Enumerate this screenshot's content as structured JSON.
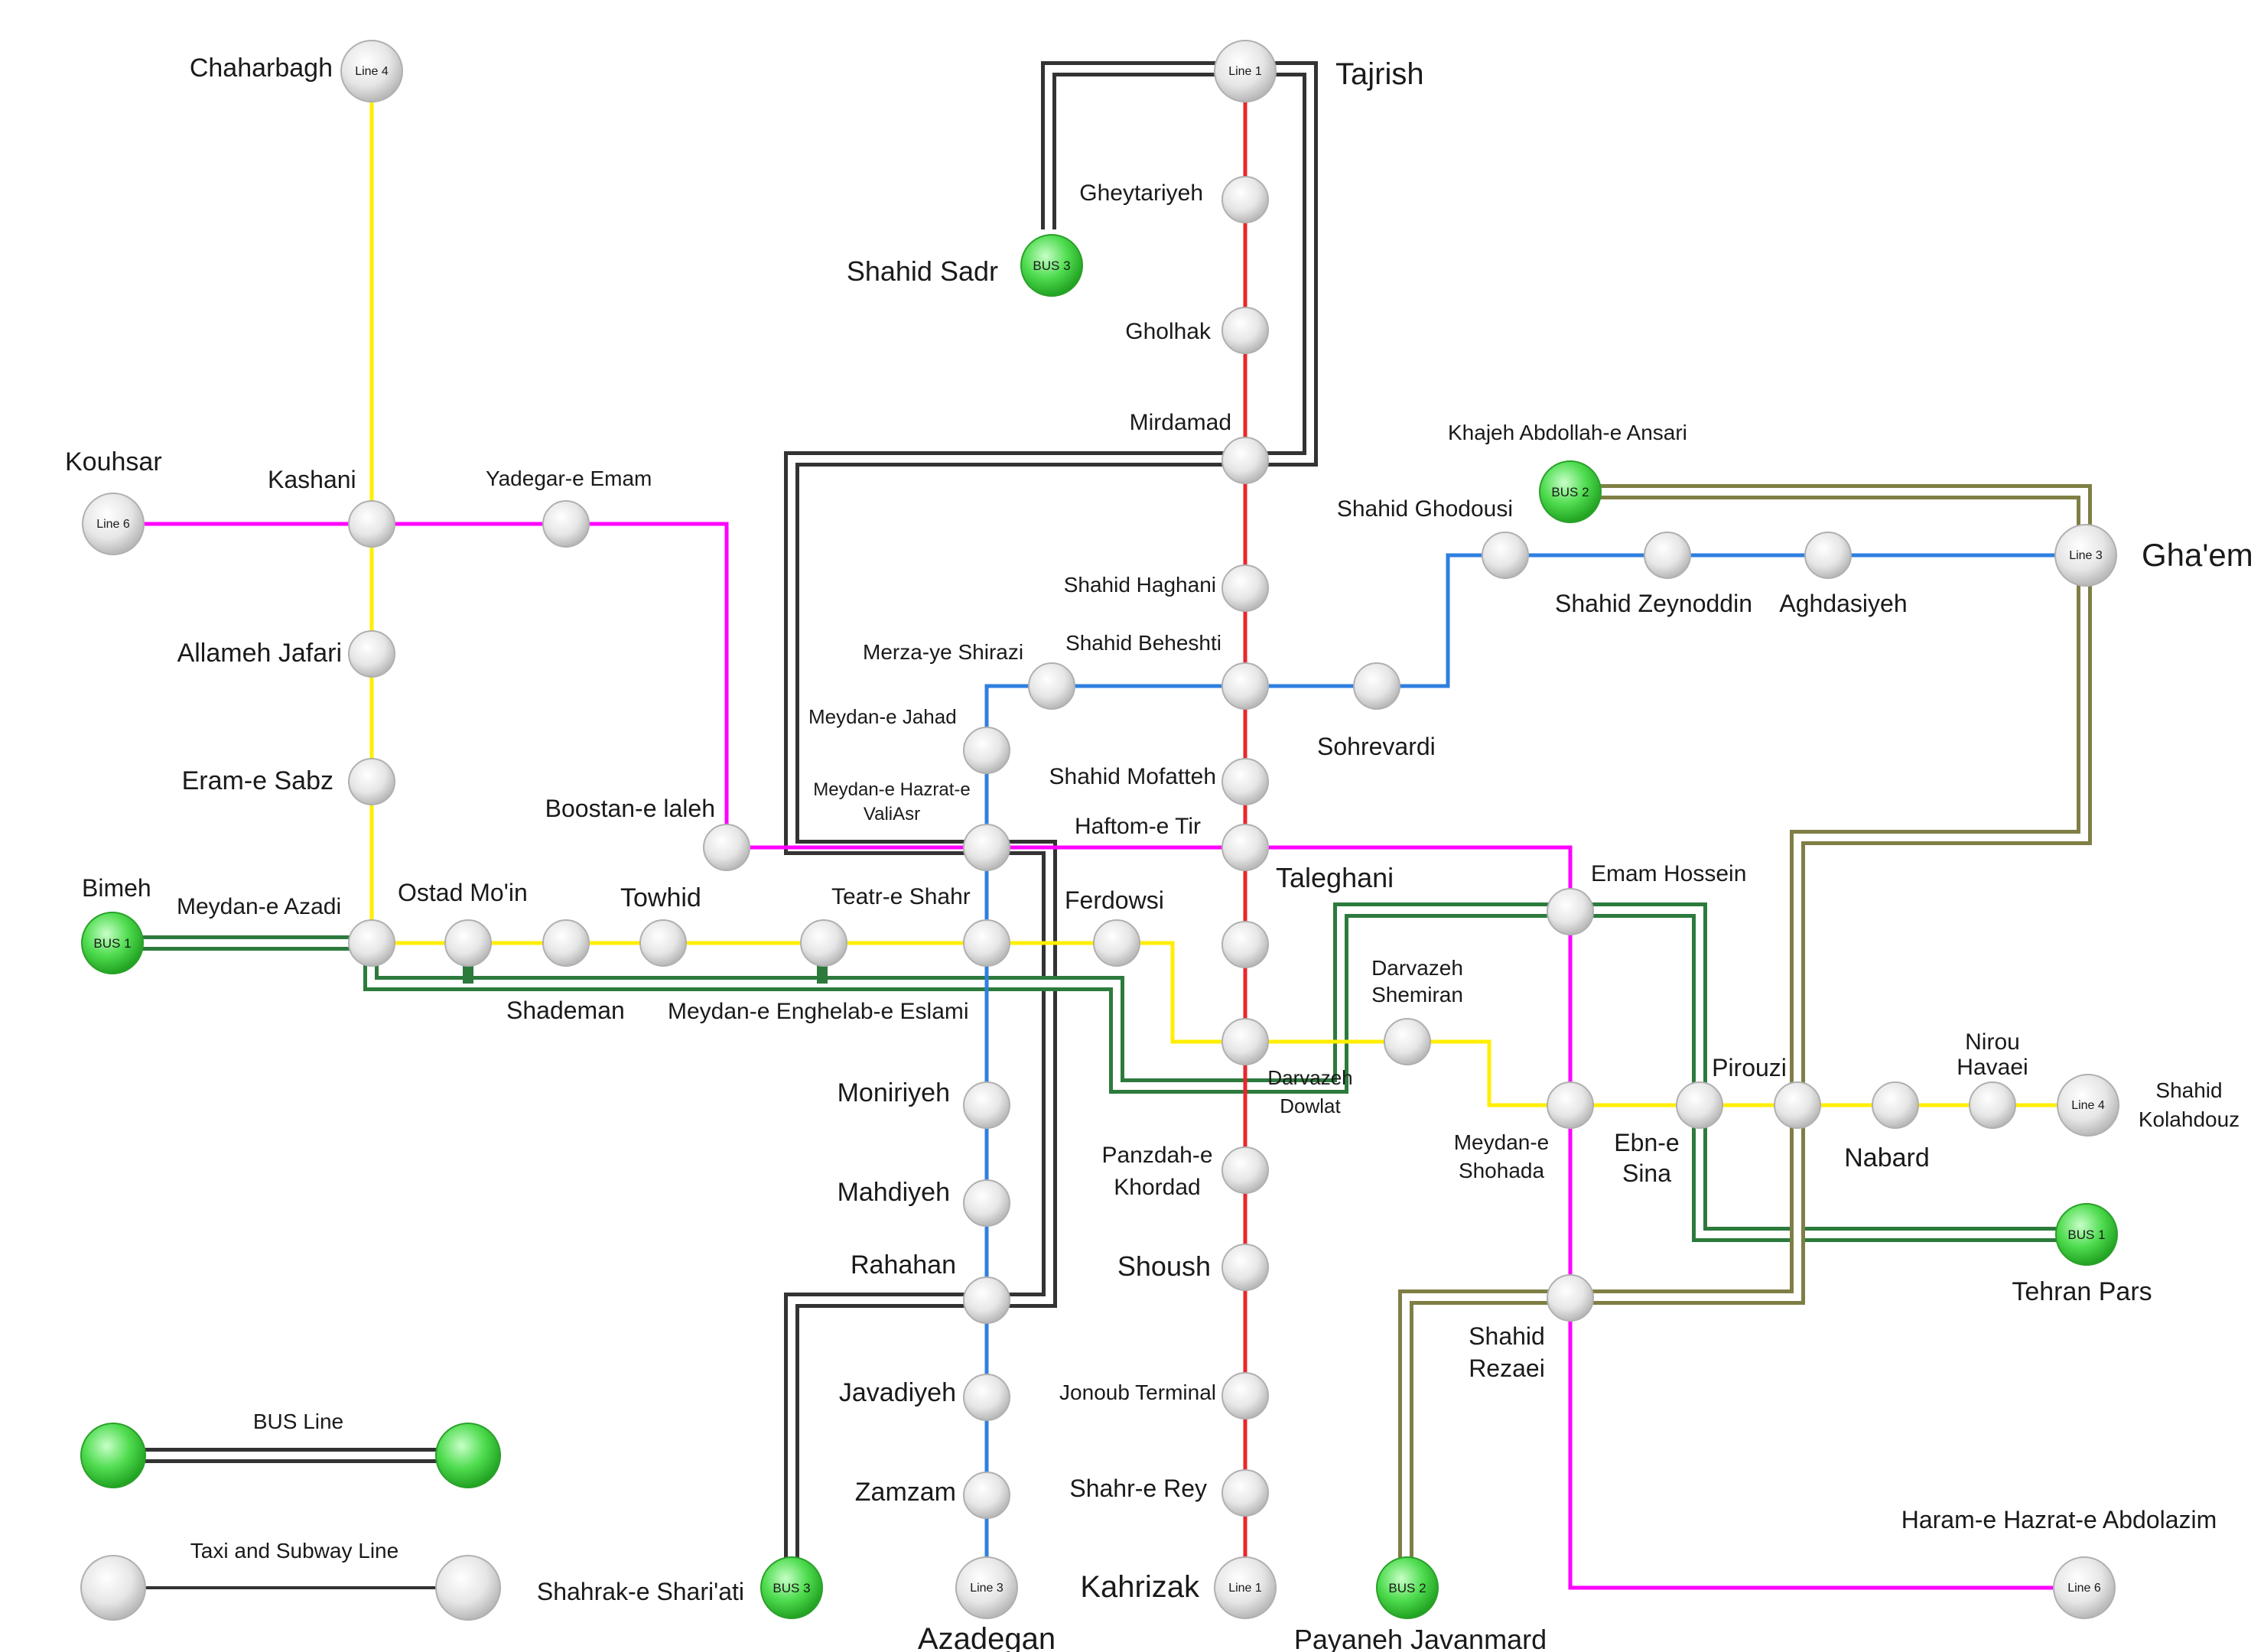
{
  "colors": {
    "line1": "#e8262a",
    "line3": "#2f7fe0",
    "line4": "#ffff00",
    "line6": "#ff00ff",
    "bus1": "#1f6b3a",
    "bus2": "#7a7a3a",
    "bus3": "#333333",
    "bus_node": "#3fcf3f"
  },
  "stations": {
    "chaharbagh": {
      "name": "Chaharbagh",
      "tag": "Line 4"
    },
    "kouhsar": {
      "name": "Kouhsar",
      "tag": "Line 6"
    },
    "kashani": {
      "name": "Kashani"
    },
    "yadegar": {
      "name": "Yadegar-e Emam"
    },
    "allameh": {
      "name": "Allameh Jafari"
    },
    "eram": {
      "name": "Eram-e Sabz"
    },
    "boostan": {
      "name": "Boostan-e laleh"
    },
    "bimeh": {
      "name": "Bimeh",
      "tag": "BUS 1"
    },
    "meydan_azadi": {
      "name": "Meydan-e Azadi"
    },
    "ostad": {
      "name": "Ostad Mo'in"
    },
    "shademan": {
      "name": "Shademan"
    },
    "towhid": {
      "name": "Towhid"
    },
    "enghelab": {
      "name": "Meydan-e Enghelab-e Eslami"
    },
    "teatr": {
      "name": "Teatr-e Shahr"
    },
    "ferdowsi": {
      "name": "Ferdowsi"
    },
    "valiasr": {
      "name_l1": "Meydan-e Hazrat-e",
      "name_l2": "ValiAsr"
    },
    "jahad": {
      "name": "Meydan-e Jahad"
    },
    "shirazi": {
      "name": "Merza-ye Shirazi"
    },
    "tajrish": {
      "name": "Tajrish",
      "tag": "Line 1"
    },
    "gheytariyeh": {
      "name": "Gheytariyeh"
    },
    "shahid_sadr": {
      "name": "Shahid Sadr",
      "tag": "BUS 3"
    },
    "gholhak": {
      "name": "Gholhak"
    },
    "mirdamad": {
      "name": "Mirdamad"
    },
    "haghani": {
      "name": "Shahid Haghani"
    },
    "beheshti": {
      "name": "Shahid Beheshti"
    },
    "sohrevardi": {
      "name": "Sohrevardi"
    },
    "mofatteh": {
      "name": "Shahid Mofatteh"
    },
    "haftom": {
      "name": "Haftom-e Tir"
    },
    "taleghani": {
      "name": "Taleghani"
    },
    "darvazeh_dowlat": {
      "name_l1": "Darvazeh",
      "name_l2": "Dowlat"
    },
    "darvazeh_shemiran": {
      "name_l1": "Darvazeh",
      "name_l2": "Shemiran"
    },
    "panzdah": {
      "name_l1": "Panzdah-e",
      "name_l2": "Khordad"
    },
    "shoush": {
      "name": "Shoush"
    },
    "jonoub": {
      "name": "Jonoub Terminal"
    },
    "shahr_rey": {
      "name": "Shahr-e Rey"
    },
    "kahrizak": {
      "name": "Kahrizak",
      "tag": "Line 1"
    },
    "moniriyeh": {
      "name": "Moniriyeh"
    },
    "mahdiyeh": {
      "name": "Mahdiyeh"
    },
    "rahahan": {
      "name": "Rahahan"
    },
    "javadiyeh": {
      "name": "Javadiyeh"
    },
    "zamzam": {
      "name": "Zamzam"
    },
    "azadegan": {
      "name": "Azadegan",
      "tag": "Line 3"
    },
    "shariati": {
      "name": "Shahrak-e Shari'ati",
      "tag": "BUS 3"
    },
    "khajeh": {
      "name": "Khajeh Abdollah-e Ansari",
      "tag": "BUS 2"
    },
    "ghodousi": {
      "name": "Shahid Ghodousi"
    },
    "zeynoddin": {
      "name": "Shahid Zeynoddin"
    },
    "aghdasiyeh": {
      "name": "Aghdasiyeh"
    },
    "ghaem": {
      "name": "Gha'em",
      "tag": "Line 3"
    },
    "emam_hossein": {
      "name": "Emam Hossein"
    },
    "shohada": {
      "name_l1": "Meydan-e",
      "name_l2": "Shohada"
    },
    "ebn_sina": {
      "name_l1": "Ebn-e",
      "name_l2": "Sina"
    },
    "pirouzi": {
      "name": "Pirouzi"
    },
    "nabard": {
      "name": "Nabard"
    },
    "nirou": {
      "name_l1": "Nirou",
      "name_l2": "Havaei"
    },
    "kolahdouz": {
      "name_l1": "Shahid",
      "name_l2": "Kolahdouz",
      "tag": "Line 4"
    },
    "tehran_pars": {
      "name": "Tehran Pars",
      "tag": "BUS 1"
    },
    "shahid_rezaei": {
      "name_l1": "Shahid",
      "name_l2": "Rezaei"
    },
    "javanmard": {
      "name": "Payaneh Javanmard",
      "tag": "BUS 2"
    },
    "haram": {
      "name": "Haram-e Hazrat-e Abdolazim",
      "tag": "Line 6"
    }
  },
  "legend": {
    "bus_line": "BUS Line",
    "subway_line": "Taxi and Subway Line"
  }
}
